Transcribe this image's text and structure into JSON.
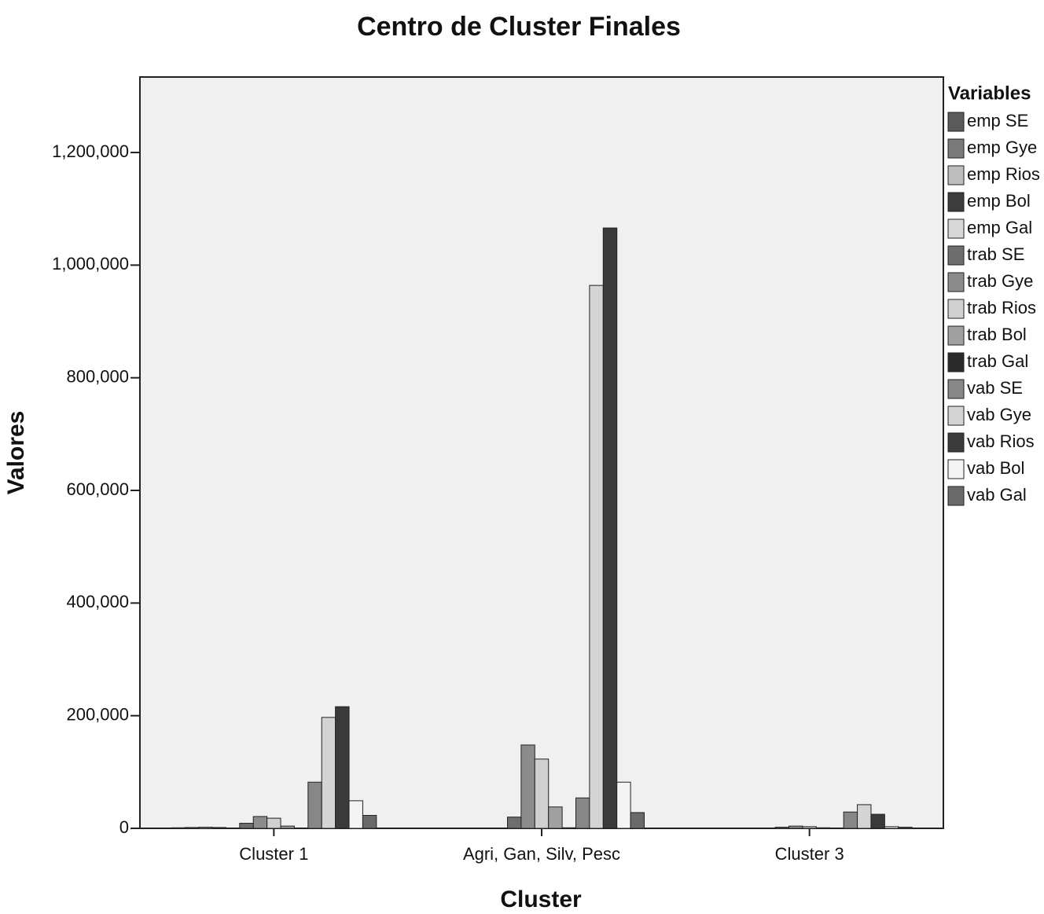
{
  "chart_data": {
    "type": "bar",
    "title": "Centro de Cluster Finales",
    "x_label": "Cluster",
    "y_label": "Valores",
    "legend_title": "Variables",
    "categories": [
      "Cluster 1",
      "Agri, Gan, Silv, Pesc",
      "Cluster 3"
    ],
    "series": [
      {
        "name": "emp SE",
        "color": "#5a5a5a",
        "values": [
          1000,
          500,
          500
        ]
      },
      {
        "name": "emp Gye",
        "color": "#7a7a7a",
        "values": [
          1500,
          500,
          500
        ]
      },
      {
        "name": "emp Rios",
        "color": "#bdbdbd",
        "values": [
          2000,
          500,
          500
        ]
      },
      {
        "name": "emp Bol",
        "color": "#3c3c3c",
        "values": [
          1500,
          500,
          500
        ]
      },
      {
        "name": "emp Gal",
        "color": "#d8d8d8",
        "values": [
          500,
          500,
          500
        ]
      },
      {
        "name": "trab SE",
        "color": "#6e6e6e",
        "values": [
          9000,
          20000,
          2000
        ]
      },
      {
        "name": "trab Gye",
        "color": "#8c8c8c",
        "values": [
          21000,
          148000,
          4000
        ]
      },
      {
        "name": "trab Rios",
        "color": "#d0d0d0",
        "values": [
          18000,
          123000,
          3000
        ]
      },
      {
        "name": "trab Bol",
        "color": "#a0a0a0",
        "values": [
          4000,
          38000,
          1000
        ]
      },
      {
        "name": "trab Gal",
        "color": "#2a2a2a",
        "values": [
          500,
          1000,
          500
        ]
      },
      {
        "name": "vab SE",
        "color": "#878787",
        "values": [
          82000,
          54000,
          29000
        ]
      },
      {
        "name": "vab Gye",
        "color": "#d4d4d4",
        "values": [
          197000,
          964000,
          42000
        ]
      },
      {
        "name": "vab Rios",
        "color": "#3a3a3a",
        "values": [
          216000,
          1066000,
          25000
        ]
      },
      {
        "name": "vab Bol",
        "color": "#f4f4f4",
        "values": [
          49000,
          82000,
          3000
        ]
      },
      {
        "name": "vab Gal",
        "color": "#6a6a6a",
        "values": [
          23000,
          28000,
          2000
        ]
      }
    ],
    "ylim": [
      0,
      1334000
    ],
    "yticks": [
      0,
      {
        "value": 200000,
        "label": "200,000"
      },
      {
        "value": 400000,
        "label": "400,000"
      },
      {
        "value": 600000,
        "label": "600,000"
      },
      {
        "value": 800000,
        "label": "800,000"
      },
      {
        "value": 1000000,
        "label": "1,000,000"
      },
      {
        "value": 1200000,
        "label": "1,200,000"
      }
    ],
    "legend": "right"
  }
}
